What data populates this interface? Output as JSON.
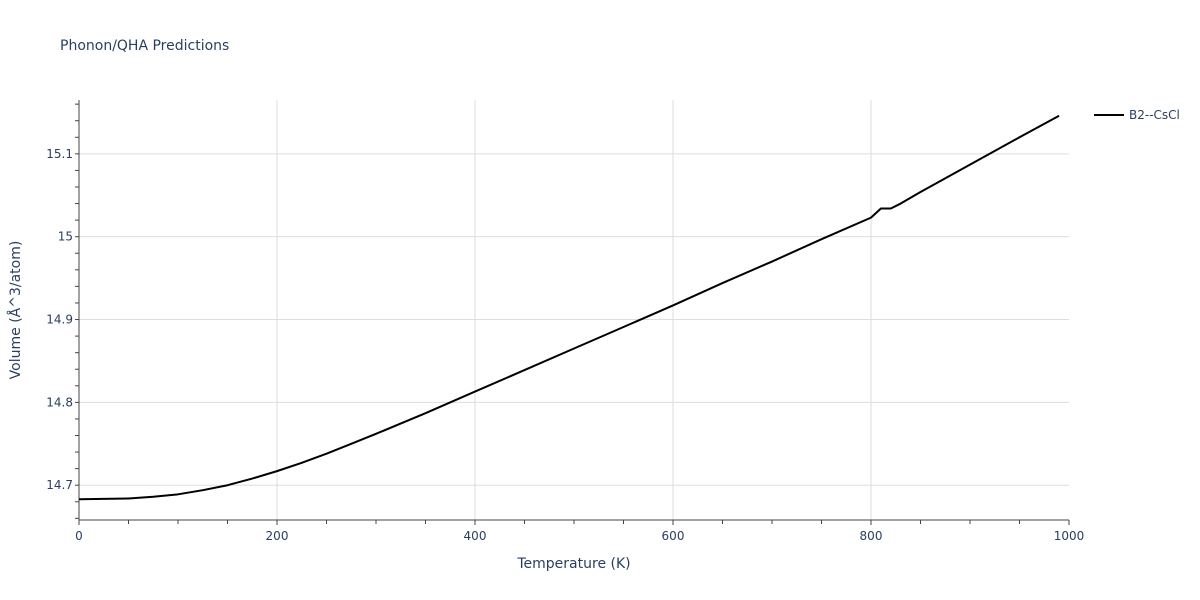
{
  "chart_data": {
    "type": "line",
    "title": "Phonon/QHA Predictions",
    "xlabel": "Temperature (K)",
    "ylabel": "Volume (Å^3/atom)",
    "xlim": [
      0,
      1000
    ],
    "ylim": [
      14.658,
      15.165
    ],
    "x_ticks": [
      0,
      200,
      400,
      600,
      800,
      1000
    ],
    "x_tick_labels": [
      "0",
      "200",
      "400",
      "600",
      "800",
      "1000"
    ],
    "y_ticks": [
      14.7,
      14.8,
      14.9,
      15.0,
      15.1
    ],
    "y_tick_labels": [
      "14.7",
      "14.8",
      "14.9",
      "15",
      "15.1"
    ],
    "grid": true,
    "legend_position": "top-right",
    "series": [
      {
        "name": "B2--CsCl",
        "color": "#000000",
        "x": [
          0,
          50,
          75,
          100,
          125,
          150,
          175,
          200,
          225,
          250,
          275,
          300,
          350,
          400,
          450,
          500,
          550,
          600,
          650,
          700,
          750,
          800,
          810,
          820,
          830,
          850,
          900,
          950,
          990
        ],
        "y": [
          14.683,
          14.684,
          14.686,
          14.689,
          14.694,
          14.7,
          14.708,
          14.717,
          14.727,
          14.738,
          14.75,
          14.762,
          14.787,
          14.813,
          14.839,
          14.865,
          14.891,
          14.917,
          14.944,
          14.97,
          14.997,
          15.023,
          15.034,
          15.034,
          15.04,
          15.054,
          15.087,
          15.12,
          15.146
        ]
      }
    ]
  }
}
